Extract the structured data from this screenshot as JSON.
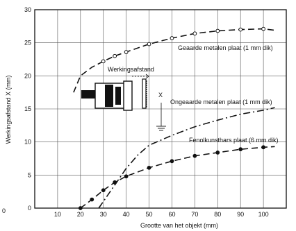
{
  "chart_data": {
    "type": "line",
    "xlabel": "Grootte van het objekt (mm)",
    "ylabel": "Werkingsafstand X (mm)",
    "xlim": [
      0,
      110
    ],
    "ylim": [
      0,
      30
    ],
    "x_ticks": [
      10,
      20,
      30,
      40,
      50,
      60,
      70,
      80,
      90,
      100
    ],
    "y_ticks": [
      0,
      5,
      10,
      15,
      20,
      25,
      30
    ],
    "grid": true,
    "edge_label": "0",
    "inset_label": "Werkingsafstand",
    "inset_symbol": "X",
    "series": [
      {
        "name": "Geaarde metalen plaat (1 mm dik)",
        "style": "dashed",
        "marker": "open-circle",
        "points": [
          [
            17,
            17.5
          ],
          [
            20,
            20
          ],
          [
            25,
            21.3
          ],
          [
            30,
            22.2
          ],
          [
            35,
            23.0
          ],
          [
            40,
            23.6
          ],
          [
            50,
            24.8
          ],
          [
            60,
            25.7
          ],
          [
            70,
            26.4
          ],
          [
            80,
            26.8
          ],
          [
            90,
            27.0
          ],
          [
            100,
            27.1
          ],
          [
            105,
            26.9
          ]
        ]
      },
      {
        "name": "Ongeaarde metalen plaat (1 mm dik)",
        "style": "dash-dot",
        "marker": "none",
        "points": [
          [
            28,
            0
          ],
          [
            32,
            2
          ],
          [
            36,
            4
          ],
          [
            40,
            6
          ],
          [
            45,
            8
          ],
          [
            50,
            9.5
          ],
          [
            60,
            11
          ],
          [
            70,
            12.3
          ],
          [
            80,
            13.3
          ],
          [
            90,
            14.2
          ],
          [
            100,
            14.8
          ],
          [
            105,
            15.2
          ]
        ]
      },
      {
        "name": "Fenolkunsthars plaat (6 mm dik)",
        "style": "dashed",
        "marker": "filled-circle",
        "points": [
          [
            20,
            0
          ],
          [
            25,
            1.3
          ],
          [
            30,
            2.7
          ],
          [
            35,
            3.9
          ],
          [
            40,
            4.8
          ],
          [
            50,
            6.1
          ],
          [
            60,
            7.1
          ],
          [
            70,
            7.9
          ],
          [
            80,
            8.4
          ],
          [
            90,
            8.9
          ],
          [
            100,
            9.2
          ],
          [
            105,
            9.3
          ]
        ]
      }
    ]
  }
}
